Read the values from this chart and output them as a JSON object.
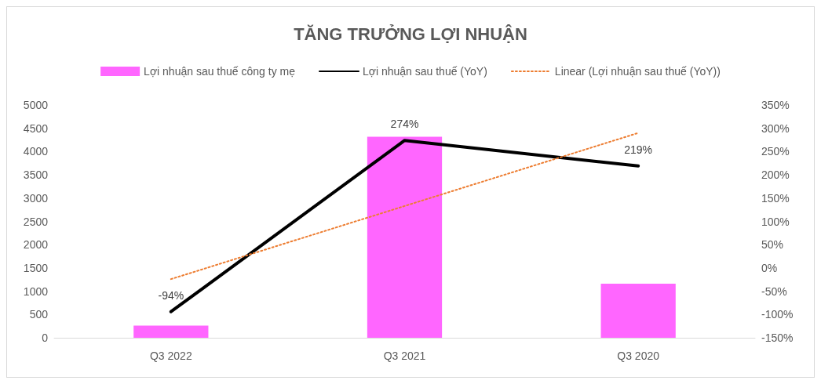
{
  "chart_data": {
    "type": "bar",
    "title": "TĂNG TRƯỞNG LỢI NHUẬN",
    "categories": [
      "Q3 2022",
      "Q3 2021",
      "Q3 2020"
    ],
    "series": [
      {
        "name": "Lợi nhuận sau thuế công ty mẹ",
        "color": "#ff66ff",
        "values": [
          260,
          4320,
          1160
        ]
      },
      {
        "name": "Lợi nhuận sau thuế (YoY)",
        "type": "line",
        "axis": "y2",
        "color": "#000000",
        "line_style": "solid",
        "values": [
          -94,
          274,
          219
        ],
        "value_labels": [
          "-94%",
          "274%",
          "219%"
        ]
      },
      {
        "name": "Linear (Lợi nhuận sau thuế (YoY))",
        "type": "line",
        "axis": "y2",
        "color": "#ed7d31",
        "line_style": "dotted",
        "values": [
          -24,
          133,
          290
        ]
      }
    ],
    "ylim": [
      0,
      5000
    ],
    "yticks": [
      0,
      500,
      1000,
      1500,
      2000,
      2500,
      3000,
      3500,
      4000,
      4500,
      5000
    ],
    "y2lim": [
      -150,
      350
    ],
    "y2ticks": [
      {
        "value": -150,
        "label": "-150%"
      },
      {
        "value": -100,
        "label": "-100%"
      },
      {
        "value": -50,
        "label": "-50%"
      },
      {
        "value": 0,
        "label": "0%"
      },
      {
        "value": 50,
        "label": "50%"
      },
      {
        "value": 100,
        "label": "100%"
      },
      {
        "value": 150,
        "label": "150%"
      },
      {
        "value": 200,
        "label": "200%"
      },
      {
        "value": 250,
        "label": "250%"
      },
      {
        "value": 300,
        "label": "300%"
      },
      {
        "value": 350,
        "label": "350%"
      }
    ],
    "grid": false,
    "legend": "top",
    "marker": "none"
  }
}
